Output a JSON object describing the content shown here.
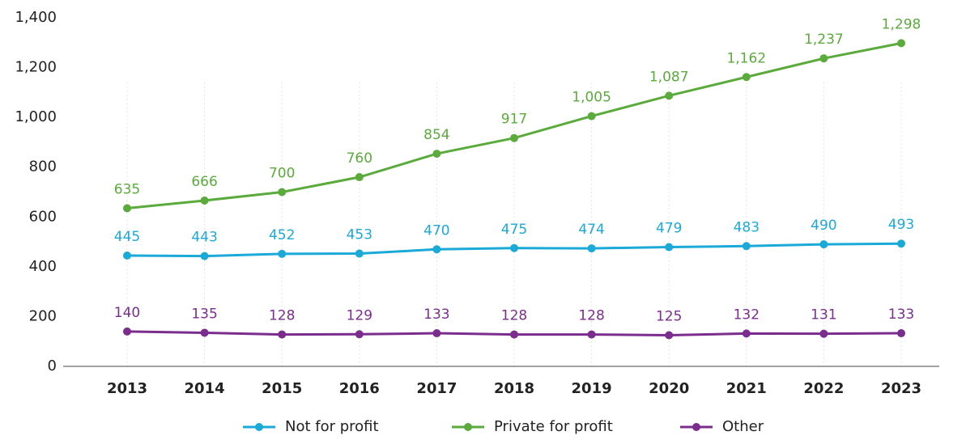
{
  "chart_data": {
    "type": "line",
    "categories": [
      "2013",
      "2014",
      "2015",
      "2016",
      "2017",
      "2018",
      "2019",
      "2020",
      "2021",
      "2022",
      "2023"
    ],
    "series": [
      {
        "name": "Not for profit",
        "color": "#1ba9d8",
        "values": [
          445,
          443,
          452,
          453,
          470,
          475,
          474,
          479,
          483,
          490,
          493
        ]
      },
      {
        "name": "Private for profit",
        "color": "#5aab3c",
        "values": [
          635,
          666,
          700,
          760,
          854,
          917,
          1005,
          1087,
          1162,
          1237,
          1298
        ],
        "value_labels": [
          "635",
          "666",
          "700",
          "760",
          "854",
          "917",
          "1,005",
          "1,087",
          "1,162",
          "1,237",
          "1,298"
        ]
      },
      {
        "name": "Other",
        "color": "#7b2d8e",
        "values": [
          140,
          135,
          128,
          129,
          133,
          128,
          128,
          125,
          132,
          131,
          133
        ]
      }
    ],
    "ylim": [
      0,
      1400
    ],
    "yticks": [
      0,
      200,
      400,
      600,
      800,
      {
        "value": 1000,
        "label": "1,000"
      },
      {
        "value": 1200,
        "label": "1,200"
      },
      {
        "value": 1400,
        "label": "1,400"
      }
    ],
    "grid": false,
    "legend": "bottom"
  }
}
